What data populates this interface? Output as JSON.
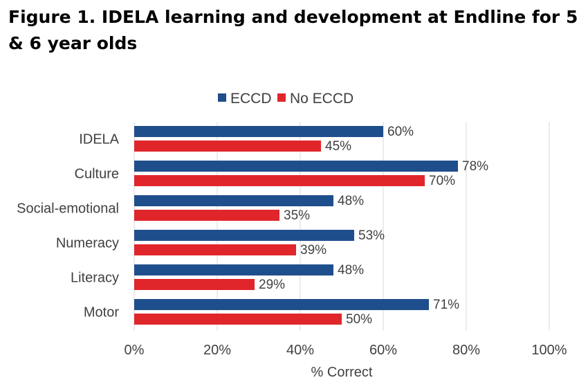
{
  "title": "Figure 1. IDELA learning and development at Endline for 5 & 6 year olds",
  "chart_data": {
    "type": "bar",
    "orientation": "horizontal",
    "categories": [
      "IDELA",
      "Culture",
      "Social-emotional",
      "Numeracy",
      "Literacy",
      "Motor"
    ],
    "series": [
      {
        "name": "ECCD",
        "color": "#1f4e8c",
        "values": [
          60,
          78,
          48,
          53,
          48,
          71
        ]
      },
      {
        "name": "No ECCD",
        "color": "#e0262b",
        "values": [
          45,
          70,
          35,
          39,
          29,
          50
        ]
      }
    ],
    "xlabel": "% Correct",
    "xlim": [
      0,
      100
    ],
    "xticks": [
      "0%",
      "20%",
      "40%",
      "60%",
      "80%",
      "100%"
    ],
    "value_suffix": "%",
    "grid": "vertical",
    "legend": "top-center"
  }
}
